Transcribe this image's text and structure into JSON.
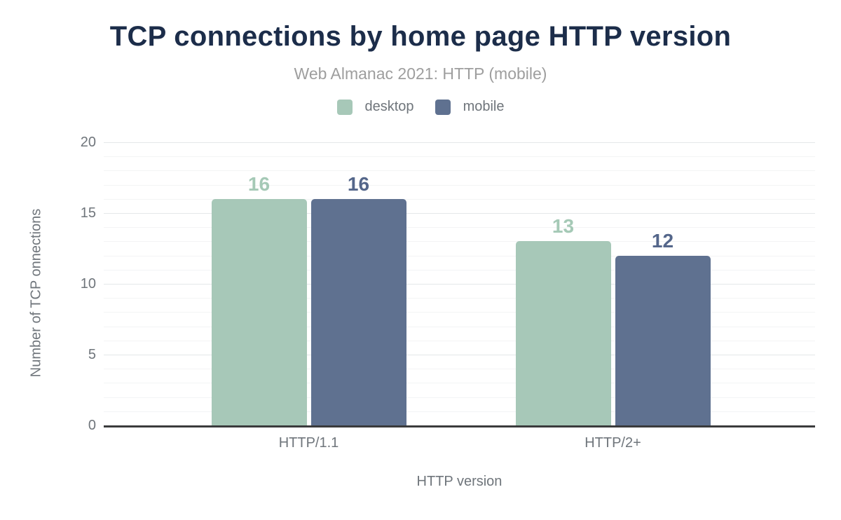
{
  "chart_data": {
    "type": "bar",
    "title": "TCP connections by home page HTTP version",
    "subtitle": "Web Almanac 2021: HTTP (mobile)",
    "categories": [
      "HTTP/1.1",
      "HTTP/2+"
    ],
    "series": [
      {
        "name": "desktop",
        "values": [
          16,
          13
        ],
        "color": "#a7c8b8",
        "label_color": "#a5c9b6"
      },
      {
        "name": "mobile",
        "values": [
          16,
          12
        ],
        "color": "#5f7190",
        "label_color": "#54668a"
      }
    ],
    "xlabel": "HTTP version",
    "ylabel": "Number of TCP onnections",
    "ylim": [
      0,
      20
    ],
    "yticks": [
      0,
      5,
      10,
      15,
      20
    ],
    "grid": {
      "horizontal": true,
      "minor_every": 1,
      "major_every": 5
    },
    "legend_position": "top",
    "bar_value_labels": true
  },
  "colors": {
    "title": "#1c2d4a",
    "subtitle": "#9e9e9e",
    "legend_text": "#6f757b",
    "axis_text": "#6f757b",
    "axis_line": "#3a3b3c",
    "gridline_major": "#e4e7e9",
    "gridline_minor": "#f3f4f5",
    "background": "#ffffff"
  }
}
